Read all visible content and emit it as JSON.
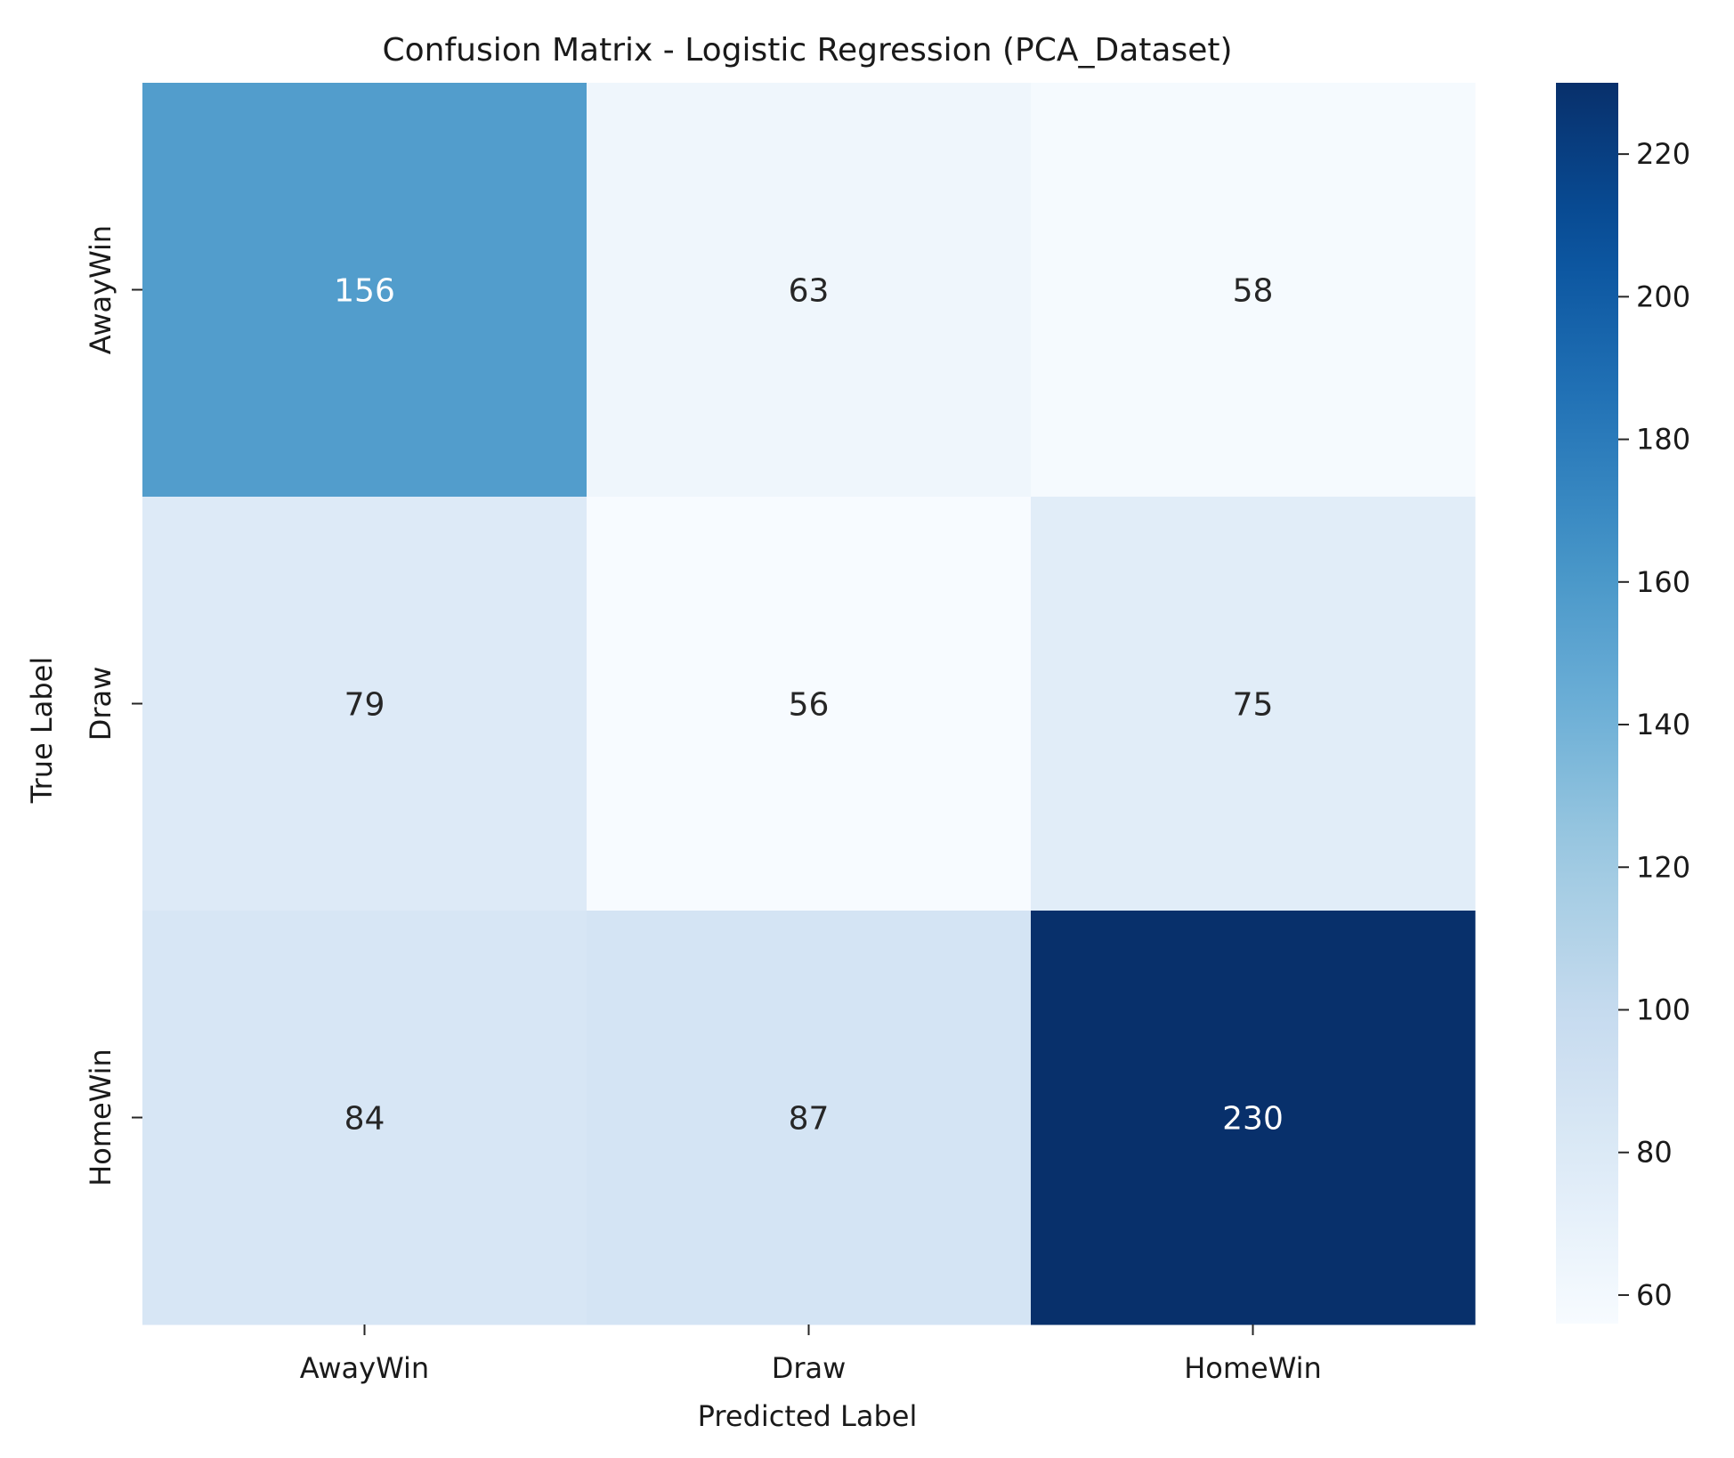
{
  "chart_data": {
    "type": "heatmap",
    "title": "Confusion Matrix - Logistic Regression (PCA_Dataset)",
    "xlabel": "Predicted Label",
    "ylabel": "True Label",
    "x_categories": [
      "AwayWin",
      "Draw",
      "HomeWin"
    ],
    "y_categories": [
      "AwayWin",
      "Draw",
      "HomeWin"
    ],
    "values": [
      [
        156,
        63,
        58
      ],
      [
        79,
        56,
        75
      ],
      [
        84,
        87,
        230
      ]
    ],
    "colormap": "Blues",
    "vmin": 56,
    "vmax": 230,
    "colorbar_ticks": [
      60,
      80,
      100,
      120,
      140,
      160,
      180,
      200,
      220
    ],
    "colors": {
      "low": "#f7fbff",
      "high": "#08306b",
      "text_dark": "#262626",
      "text_light": "#ffffff"
    }
  }
}
